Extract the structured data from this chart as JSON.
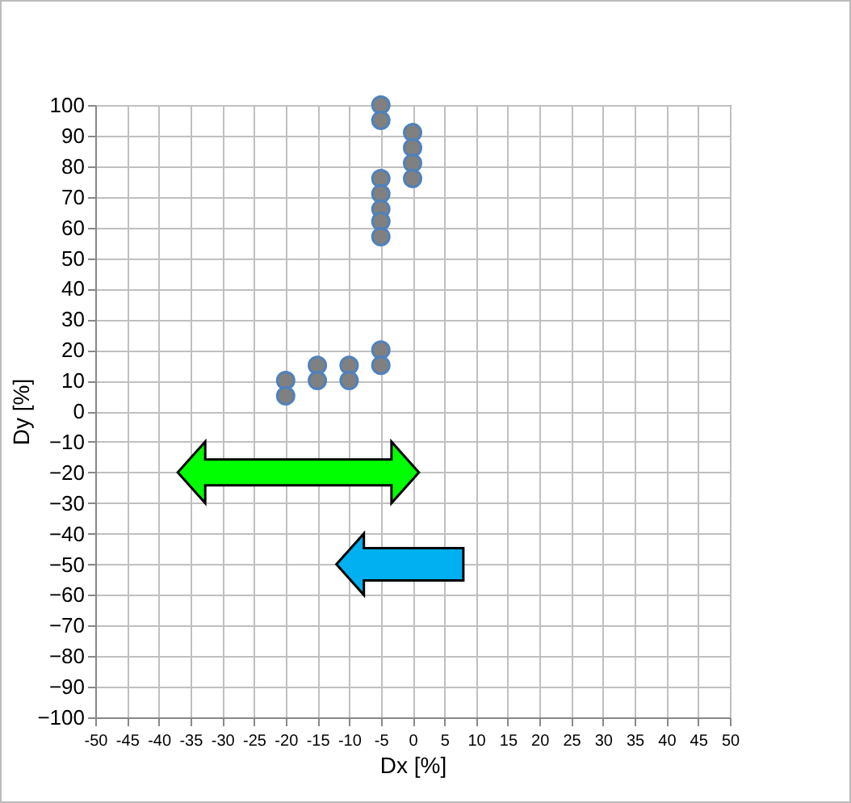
{
  "chart_data": {
    "type": "scatter",
    "xlabel": "Dx [%]",
    "ylabel": "Dy [%]",
    "x": [
      -5,
      -5,
      0,
      0,
      0,
      0,
      -5,
      -5,
      -5,
      -5,
      -5,
      -5,
      -5,
      -10,
      -10,
      -15,
      -15,
      -20,
      -20
    ],
    "series": [
      {
        "color": "#808080",
        "values": [
          100,
          95,
          91,
          86,
          81,
          76,
          76,
          71,
          66,
          62,
          57,
          20,
          15,
          15,
          10,
          15,
          10,
          10,
          5
        ]
      }
    ],
    "xlim": [
      -50,
      50
    ],
    "xticks": [
      -50,
      -45,
      -40,
      -35,
      -30,
      -25,
      -20,
      -15,
      -10,
      -5,
      0,
      5,
      10,
      15,
      20,
      25,
      30,
      35,
      40,
      45,
      50
    ],
    "ylim": [
      -100,
      100
    ],
    "yticks": [
      -100,
      -90,
      -80,
      -70,
      -60,
      -50,
      -40,
      -30,
      -20,
      -10,
      0,
      10,
      20,
      30,
      40,
      50,
      60,
      70,
      80,
      90,
      100
    ],
    "grid": true,
    "marker": "circle",
    "legend": false
  }
}
